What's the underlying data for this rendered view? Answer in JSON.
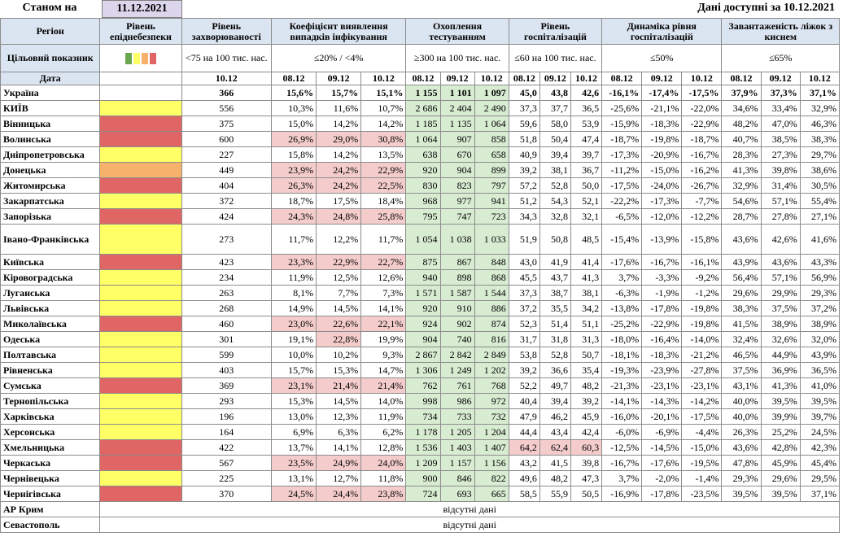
{
  "header": {
    "label": "Станом на",
    "date": "11.12.2021",
    "available": "Дані доступні за  10.12.2021"
  },
  "table": {
    "columns": {
      "region": "Регіон",
      "level": "Рівень епіднебезпеки",
      "incidence": "Рівень захворюваності",
      "positivity": "Коефіцієнт виявлення випадків інфікування",
      "testing": "Охоплення тестуванням",
      "hospital": "Рівень госпіталізацій",
      "dynamics": "Динаміка рівня госпіталізацій",
      "oxygen": "Завантаженість ліжок з киснем"
    },
    "targets": {
      "label": "Цільовий показник",
      "incidence": "<75 на 100 тис. нас.",
      "positivity": "≤20% / <4%",
      "testing": "≥300 на 100 тис. нас.",
      "hospital": "≤60 на 100 тис. нас.",
      "dynamics": "≤50%",
      "oxygen": "≤65%"
    },
    "dates": {
      "label": "Дата",
      "incidence": [
        "10.12"
      ],
      "positivity": [
        "08.12",
        "09.12",
        "10.12"
      ],
      "testing": [
        "08.12",
        "09.12",
        "10.12"
      ],
      "hospital": [
        "08.12",
        "09.12",
        "10.12"
      ],
      "dynamics": [
        "08.12",
        "09.12",
        "10.12"
      ],
      "oxygen": [
        "08.12",
        "09.12",
        "10.12"
      ]
    },
    "colors": {
      "flag": "#f4cccc",
      "testing": "#d8ecd2"
    },
    "rows": [
      {
        "region": "Україна",
        "cells": [
          "366",
          "15,6%",
          "15,7%",
          "15,1%",
          "1 155",
          "1 101",
          "1 097",
          "45,0",
          "43,8",
          "42,6",
          "-16,1%",
          "-17,4%",
          "-17,5%",
          "37,9%",
          "37,3%",
          "37,1%"
        ]
      },
      {
        "region": "КИЇВ",
        "level": "#ffff66",
        "cells": [
          "556",
          "10,3%",
          "11,6%",
          "10,7%",
          "2 686",
          "2 404",
          "2 490",
          "37,3",
          "37,7",
          "36,5",
          "-25,6%",
          "-21,1%",
          "-22,0%",
          "34,6%",
          "33,4%",
          "32,9%"
        ]
      },
      {
        "region": "Вінницька",
        "level": "#e06666",
        "cells": [
          "375",
          "15,0%",
          "14,2%",
          "14,2%",
          "1 185",
          "1 135",
          "1 064",
          "59,6",
          "58,0",
          "53,9",
          "-15,9%",
          "-18,3%",
          "-22,9%",
          "48,2%",
          "47,0%",
          "46,3%"
        ]
      },
      {
        "region": "Волинська",
        "level": "#e06666",
        "flagged": [
          1,
          2,
          3
        ],
        "cells": [
          "600",
          "26,9%",
          "29,0%",
          "30,8%",
          "1 064",
          "907",
          "858",
          "51,8",
          "50,4",
          "47,4",
          "-18,7%",
          "-19,8%",
          "-18,7%",
          "40,7%",
          "38,5%",
          "38,3%"
        ]
      },
      {
        "region": "Дніпропетровська",
        "level": "#ffff66",
        "cells": [
          "227",
          "15,8%",
          "14,2%",
          "13,5%",
          "638",
          "670",
          "658",
          "40,9",
          "39,4",
          "39,7",
          "-17,3%",
          "-20,9%",
          "-16,7%",
          "28,3%",
          "27,3%",
          "29,7%"
        ]
      },
      {
        "region": "Донецька",
        "level": "#f6b26b",
        "flagged": [
          1,
          2,
          3
        ],
        "cells": [
          "449",
          "23,9%",
          "24,2%",
          "22,9%",
          "920",
          "904",
          "899",
          "39,2",
          "38,1",
          "36,7",
          "-11,2%",
          "-15,0%",
          "-16,2%",
          "41,3%",
          "39,8%",
          "38,6%"
        ]
      },
      {
        "region": "Житомирська",
        "level": "#e06666",
        "flagged": [
          1,
          2,
          3
        ],
        "cells": [
          "404",
          "26,3%",
          "24,2%",
          "22,5%",
          "830",
          "823",
          "797",
          "57,2",
          "52,8",
          "50,0",
          "-17,5%",
          "-24,0%",
          "-26,7%",
          "32,9%",
          "31,4%",
          "30,5%"
        ]
      },
      {
        "region": "Закарпатська",
        "level": "#ffff66",
        "cells": [
          "372",
          "18,7%",
          "17,5%",
          "18,4%",
          "968",
          "977",
          "941",
          "51,2",
          "54,3",
          "52,1",
          "-22,2%",
          "-17,3%",
          "-7,7%",
          "54,6%",
          "57,1%",
          "55,4%"
        ]
      },
      {
        "region": "Запорізька",
        "level": "#e06666",
        "flagged": [
          1,
          2,
          3
        ],
        "cells": [
          "424",
          "24,3%",
          "24,8%",
          "25,8%",
          "795",
          "747",
          "723",
          "34,3",
          "32,8",
          "32,1",
          "-6,5%",
          "-12,0%",
          "-12,2%",
          "28,7%",
          "27,8%",
          "27,1%"
        ]
      },
      {
        "region": "Івано-Франківська",
        "level": "#ffff66",
        "cells": [
          "273",
          "11,7%",
          "12,2%",
          "11,7%",
          "1 054",
          "1 038",
          "1 033",
          "51,9",
          "50,8",
          "48,5",
          "-15,4%",
          "-13,9%",
          "-15,8%",
          "43,6%",
          "42,6%",
          "41,6%"
        ]
      },
      {
        "region": "Київська",
        "level": "#e06666",
        "flagged": [
          1,
          2,
          3
        ],
        "cells": [
          "423",
          "23,3%",
          "22,9%",
          "22,7%",
          "875",
          "867",
          "848",
          "43,0",
          "41,9",
          "41,4",
          "-17,6%",
          "-16,7%",
          "-16,1%",
          "43,9%",
          "43,6%",
          "43,3%"
        ]
      },
      {
        "region": "Кіровоградська",
        "level": "#ffff66",
        "cells": [
          "234",
          "11,9%",
          "12,5%",
          "12,6%",
          "940",
          "898",
          "868",
          "45,5",
          "43,7",
          "41,3",
          "3,7%",
          "-3,3%",
          "-9,2%",
          "56,4%",
          "57,1%",
          "56,9%"
        ]
      },
      {
        "region": "Луганська",
        "level": "#ffff66",
        "cells": [
          "263",
          "8,1%",
          "7,7%",
          "7,3%",
          "1 571",
          "1 587",
          "1 544",
          "37,3",
          "38,7",
          "38,1",
          "-6,3%",
          "-1,9%",
          "-1,2%",
          "29,6%",
          "29,9%",
          "29,3%"
        ]
      },
      {
        "region": "Львівська",
        "level": "#ffff66",
        "cells": [
          "268",
          "14,9%",
          "14,5%",
          "14,1%",
          "920",
          "910",
          "886",
          "37,2",
          "35,5",
          "34,2",
          "-13,8%",
          "-17,8%",
          "-19,8%",
          "38,3%",
          "37,5%",
          "37,2%"
        ]
      },
      {
        "region": "Миколаївська",
        "level": "#e06666",
        "flagged": [
          1,
          2,
          3
        ],
        "cells": [
          "460",
          "23,0%",
          "22,6%",
          "22,1%",
          "924",
          "902",
          "874",
          "52,3",
          "51,4",
          "51,1",
          "-25,2%",
          "-22,9%",
          "-19,8%",
          "41,5%",
          "38,9%",
          "38,9%"
        ]
      },
      {
        "region": "Одеська",
        "level": "#ffff66",
        "flagged": [
          2
        ],
        "cells": [
          "301",
          "19,1%",
          "22,8%",
          "19,9%",
          "904",
          "740",
          "816",
          "31,7",
          "31,8",
          "31,3",
          "-18,0%",
          "-16,4%",
          "-14,0%",
          "32,4%",
          "32,6%",
          "32,0%"
        ]
      },
      {
        "region": "Полтавська",
        "level": "#ffff66",
        "cells": [
          "599",
          "10,0%",
          "10,2%",
          "9,3%",
          "2 867",
          "2 842",
          "2 849",
          "53,8",
          "52,8",
          "50,7",
          "-18,1%",
          "-18,3%",
          "-21,2%",
          "46,5%",
          "44,9%",
          "43,9%"
        ]
      },
      {
        "region": "Рівненська",
        "level": "#ffff66",
        "cells": [
          "403",
          "15,7%",
          "15,3%",
          "14,7%",
          "1 306",
          "1 249",
          "1 202",
          "39,2",
          "36,6",
          "35,4",
          "-19,3%",
          "-23,9%",
          "-27,8%",
          "37,5%",
          "36,9%",
          "36,5%"
        ]
      },
      {
        "region": "Сумська",
        "level": "#e06666",
        "flagged": [
          1,
          2,
          3
        ],
        "cells": [
          "369",
          "23,1%",
          "21,4%",
          "21,4%",
          "762",
          "761",
          "768",
          "52,2",
          "49,7",
          "48,2",
          "-21,3%",
          "-23,1%",
          "-23,1%",
          "43,1%",
          "41,3%",
          "41,0%"
        ]
      },
      {
        "region": "Тернопільська",
        "level": "#ffff66",
        "cells": [
          "293",
          "15,3%",
          "14,5%",
          "14,0%",
          "998",
          "986",
          "972",
          "40,4",
          "39,4",
          "39,2",
          "-14,1%",
          "-14,3%",
          "-14,2%",
          "40,0%",
          "39,5%",
          "39,5%"
        ]
      },
      {
        "region": "Харківська",
        "level": "#ffff66",
        "cells": [
          "196",
          "13,0%",
          "12,3%",
          "11,9%",
          "734",
          "733",
          "732",
          "47,9",
          "46,2",
          "45,9",
          "-16,0%",
          "-20,1%",
          "-17,5%",
          "40,0%",
          "39,9%",
          "39,7%"
        ]
      },
      {
        "region": "Херсонська",
        "level": "#ffff66",
        "cells": [
          "164",
          "6,9%",
          "6,3%",
          "6,2%",
          "1 178",
          "1 205",
          "1 204",
          "44,4",
          "43,4",
          "42,4",
          "-6,0%",
          "-6,9%",
          "-4,4%",
          "26,3%",
          "25,2%",
          "24,5%"
        ]
      },
      {
        "region": "Хмельницька",
        "level": "#e06666",
        "flagged": [
          7,
          8,
          9
        ],
        "cells": [
          "422",
          "13,7%",
          "14,1%",
          "12,8%",
          "1 536",
          "1 403",
          "1 407",
          "64,2",
          "62,4",
          "60,3",
          "-12,5%",
          "-14,5%",
          "-15,0%",
          "43,6%",
          "42,8%",
          "42,3%"
        ]
      },
      {
        "region": "Черкаська",
        "level": "#e06666",
        "flagged": [
          1,
          2,
          3
        ],
        "cells": [
          "567",
          "23,5%",
          "24,9%",
          "24,0%",
          "1 209",
          "1 157",
          "1 156",
          "43,2",
          "41,5",
          "39,8",
          "-16,7%",
          "-17,6%",
          "-19,5%",
          "47,8%",
          "45,9%",
          "45,4%"
        ]
      },
      {
        "region": "Чернівецька",
        "level": "#ffff66",
        "cells": [
          "225",
          "13,1%",
          "12,7%",
          "11,8%",
          "900",
          "846",
          "822",
          "49,6",
          "48,2",
          "47,3",
          "3,7%",
          "-2,0%",
          "-1,4%",
          "29,3%",
          "29,6%",
          "29,5%"
        ]
      },
      {
        "region": "Чернігівська",
        "level": "#e06666",
        "flagged": [
          1,
          2,
          3
        ],
        "cells": [
          "370",
          "24,5%",
          "24,4%",
          "23,8%",
          "724",
          "693",
          "665",
          "58,5",
          "55,9",
          "50,5",
          "-16,9%",
          "-17,8%",
          "-23,5%",
          "39,5%",
          "39,5%",
          "37,1%"
        ]
      },
      {
        "region": "АР Крим",
        "note": "відсутні дані"
      },
      {
        "region": "Севастополь",
        "note": "відсутні дані"
      }
    ]
  }
}
